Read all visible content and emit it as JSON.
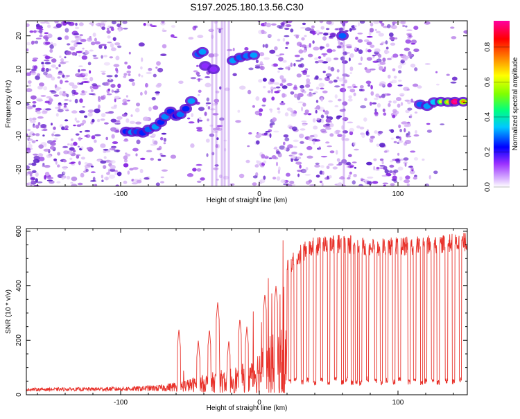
{
  "figure_title": "S197.2025.180.13.56.C30",
  "chart_data": [
    {
      "type": "heatmap",
      "title": "S197.2025.180.13.56.C30",
      "xlabel": "Height of straight line (km)",
      "ylabel": "Frequency (Hz)",
      "xlim": [
        -168,
        150
      ],
      "ylim": [
        -25,
        24.5
      ],
      "x_ticks": [
        -100,
        0,
        100
      ],
      "x_tick_labels": [
        "-100",
        "0",
        "100"
      ],
      "y_ticks": [
        -20,
        -10,
        0,
        10,
        20
      ],
      "y_tick_labels": [
        "-20",
        "-10",
        "0",
        "10",
        "20"
      ],
      "colorbar": {
        "label": "Normalized spectral amplitude",
        "range": [
          0,
          0.95
        ],
        "ticks": [
          0,
          0.2,
          0.4,
          0.6,
          0.8
        ],
        "tick_labels": [
          "0.0",
          "0.2",
          "0.4",
          "0.6",
          "0.8"
        ],
        "colormap": [
          "#ffffff",
          "#d9b3ff",
          "#9b30ff",
          "#0000ff",
          "#00c8ff",
          "#00ff80",
          "#80ff00",
          "#ffff00",
          "#ff8000",
          "#ff0000",
          "#ff00a0"
        ]
      },
      "tracks": [
        {
          "x": -96,
          "y": -8.6,
          "v": 0.3
        },
        {
          "x": -92,
          "y": -8.8,
          "v": 0.35
        },
        {
          "x": -88,
          "y": -8.7,
          "v": 0.32
        },
        {
          "x": -84,
          "y": -9.0,
          "v": 0.3
        },
        {
          "x": -80,
          "y": -8.0,
          "v": 0.33
        },
        {
          "x": -75,
          "y": -7.2,
          "v": 0.36
        },
        {
          "x": -71,
          "y": -5.8,
          "v": 0.3
        },
        {
          "x": -68,
          "y": -4.2,
          "v": 0.35
        },
        {
          "x": -64,
          "y": -2.6,
          "v": 0.3
        },
        {
          "x": -60,
          "y": -4.0,
          "v": 0.28
        },
        {
          "x": -57,
          "y": -3.5,
          "v": 0.34
        },
        {
          "x": -53,
          "y": -1.8,
          "v": 0.3
        },
        {
          "x": -49,
          "y": 0.5,
          "v": 0.36
        },
        {
          "x": -44,
          "y": 14.5,
          "v": 0.33
        },
        {
          "x": -41,
          "y": 15.2,
          "v": 0.36
        },
        {
          "x": -39,
          "y": 11.0,
          "v": 0.2
        },
        {
          "x": -33,
          "y": 10.0,
          "v": 0.2
        },
        {
          "x": -19,
          "y": 12.6,
          "v": 0.36
        },
        {
          "x": -14,
          "y": 13.5,
          "v": 0.33
        },
        {
          "x": -9,
          "y": 14.0,
          "v": 0.34
        },
        {
          "x": -4,
          "y": 14.2,
          "v": 0.36
        },
        {
          "x": 60,
          "y": 20.0,
          "v": 0.33
        },
        {
          "x": 116,
          "y": -0.5,
          "v": 0.33
        },
        {
          "x": 121,
          "y": -1.0,
          "v": 0.36
        },
        {
          "x": 126,
          "y": 0.2,
          "v": 0.38
        },
        {
          "x": 131,
          "y": 0.3,
          "v": 0.5
        },
        {
          "x": 136,
          "y": 0.2,
          "v": 0.55
        },
        {
          "x": 141,
          "y": 0.3,
          "v": 0.92
        },
        {
          "x": 147,
          "y": 0.3,
          "v": 0.6
        }
      ]
    },
    {
      "type": "line",
      "xlabel": "Height of straight line (km)",
      "ylabel": "SNR (10 * v/v)",
      "xlim": [
        -168,
        150
      ],
      "ylim": [
        0,
        610
      ],
      "x_ticks": [
        -100,
        0,
        100
      ],
      "x_tick_labels": [
        "-100",
        "0",
        "100"
      ],
      "y_ticks": [
        0,
        200,
        400,
        600
      ],
      "y_tick_labels": [
        "0",
        "200",
        "400",
        "600"
      ],
      "line_color": "#e8312a",
      "grid": false,
      "envelope": {
        "x": [
          -168,
          -120,
          -90,
          -70,
          -50,
          -30,
          -10,
          0,
          10,
          20,
          30,
          40,
          60,
          80,
          100,
          120,
          150
        ],
        "y": [
          18,
          22,
          28,
          40,
          80,
          130,
          180,
          280,
          380,
          460,
          520,
          545,
          555,
          540,
          545,
          550,
          560
        ]
      },
      "spikes": [
        {
          "x": -58,
          "y": 240
        },
        {
          "x": -44,
          "y": 200
        },
        {
          "x": -36,
          "y": 240
        },
        {
          "x": -30,
          "y": 340
        },
        {
          "x": -22,
          "y": 200
        },
        {
          "x": -14,
          "y": 280
        },
        {
          "x": -9,
          "y": 250
        },
        {
          "x": 4,
          "y": 370
        },
        {
          "x": 12,
          "y": 400
        }
      ],
      "dips": [
        {
          "x": 22,
          "y": 50
        },
        {
          "x": 26,
          "y": 60
        },
        {
          "x": 31,
          "y": 45
        },
        {
          "x": 35,
          "y": 55
        },
        {
          "x": 40,
          "y": 40
        },
        {
          "x": 45,
          "y": 55
        },
        {
          "x": 50,
          "y": 45
        },
        {
          "x": 55,
          "y": 60
        },
        {
          "x": 60,
          "y": 48
        },
        {
          "x": 63,
          "y": 55
        },
        {
          "x": 67,
          "y": 45
        },
        {
          "x": 70,
          "y": 50
        },
        {
          "x": 73,
          "y": 42
        },
        {
          "x": 78,
          "y": 55
        },
        {
          "x": 84,
          "y": 50
        },
        {
          "x": 88,
          "y": 45
        },
        {
          "x": 92,
          "y": 52
        },
        {
          "x": 97,
          "y": 48
        },
        {
          "x": 101,
          "y": 55
        },
        {
          "x": 108,
          "y": 45
        },
        {
          "x": 112,
          "y": 52
        },
        {
          "x": 117,
          "y": 45
        },
        {
          "x": 120,
          "y": 48
        },
        {
          "x": 125,
          "y": 55
        },
        {
          "x": 129,
          "y": 45
        },
        {
          "x": 135,
          "y": 52
        },
        {
          "x": 140,
          "y": 48
        },
        {
          "x": 145,
          "y": 55
        }
      ]
    }
  ]
}
